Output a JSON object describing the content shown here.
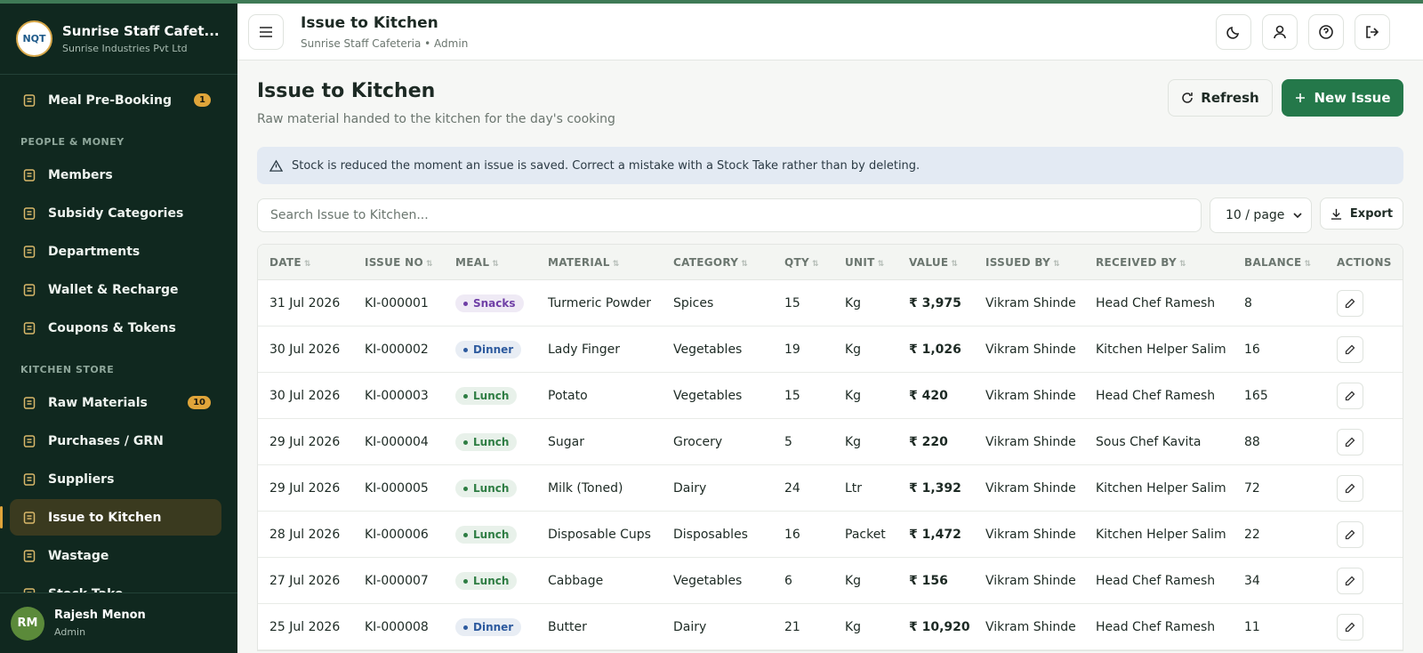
{
  "sidebar": {
    "brand": {
      "logo": "NQT",
      "name": "Sunrise Staff Cafet...",
      "org": "Sunrise Industries Pvt Ltd"
    },
    "groups": [
      {
        "section": null,
        "items": [
          {
            "label": "Meal Pre-Booking",
            "badge": "1"
          }
        ]
      },
      {
        "section": "PEOPLE & MONEY",
        "items": [
          {
            "label": "Members"
          },
          {
            "label": "Subsidy Categories"
          },
          {
            "label": "Departments"
          },
          {
            "label": "Wallet & Recharge"
          },
          {
            "label": "Coupons & Tokens"
          }
        ]
      },
      {
        "section": "KITCHEN STORE",
        "items": [
          {
            "label": "Raw Materials",
            "badge": "10"
          },
          {
            "label": "Purchases / GRN"
          },
          {
            "label": "Suppliers"
          },
          {
            "label": "Issue to Kitchen",
            "active": true
          },
          {
            "label": "Wastage"
          },
          {
            "label": "Stock Take"
          }
        ]
      }
    ],
    "user": {
      "initials": "RM",
      "name": "Rajesh Menon",
      "role": "Admin"
    }
  },
  "header": {
    "title": "Issue to Kitchen",
    "subtitle": "Sunrise Staff Cafeteria • Admin"
  },
  "page": {
    "title": "Issue to Kitchen",
    "description": "Raw material handed to the kitchen for the day's cooking",
    "refresh": "Refresh",
    "new_issue": "New Issue",
    "notice": "Stock is reduced the moment an issue is saved. Correct a mistake with a Stock Take rather than by deleting.",
    "search_placeholder": "Search Issue to Kitchen...",
    "page_size": "10 / page",
    "export": "Export"
  },
  "meal_colors": {
    "Snacks": "#6f3fa6",
    "Dinner": "#2d5a9e",
    "Lunch": "#2e7d43"
  },
  "table": {
    "columns": [
      "DATE",
      "ISSUE NO",
      "MEAL",
      "MATERIAL",
      "CATEGORY",
      "QTY",
      "UNIT",
      "VALUE",
      "ISSUED BY",
      "RECEIVED BY",
      "BALANCE",
      "ACTIONS"
    ],
    "rows": [
      [
        "31 Jul 2026",
        "KI-000001",
        "Snacks",
        "Turmeric Powder",
        "Spices",
        "15",
        "Kg",
        "₹ 3,975",
        "Vikram Shinde",
        "Head Chef Ramesh",
        "8"
      ],
      [
        "30 Jul 2026",
        "KI-000002",
        "Dinner",
        "Lady Finger",
        "Vegetables",
        "19",
        "Kg",
        "₹ 1,026",
        "Vikram Shinde",
        "Kitchen Helper Salim",
        "16"
      ],
      [
        "30 Jul 2026",
        "KI-000003",
        "Lunch",
        "Potato",
        "Vegetables",
        "15",
        "Kg",
        "₹ 420",
        "Vikram Shinde",
        "Head Chef Ramesh",
        "165"
      ],
      [
        "29 Jul 2026",
        "KI-000004",
        "Lunch",
        "Sugar",
        "Grocery",
        "5",
        "Kg",
        "₹ 220",
        "Vikram Shinde",
        "Sous Chef Kavita",
        "88"
      ],
      [
        "29 Jul 2026",
        "KI-000005",
        "Lunch",
        "Milk (Toned)",
        "Dairy",
        "24",
        "Ltr",
        "₹ 1,392",
        "Vikram Shinde",
        "Kitchen Helper Salim",
        "72"
      ],
      [
        "28 Jul 2026",
        "KI-000006",
        "Lunch",
        "Disposable Cups",
        "Disposables",
        "16",
        "Packet",
        "₹ 1,472",
        "Vikram Shinde",
        "Kitchen Helper Salim",
        "22"
      ],
      [
        "27 Jul 2026",
        "KI-000007",
        "Lunch",
        "Cabbage",
        "Vegetables",
        "6",
        "Kg",
        "₹ 156",
        "Vikram Shinde",
        "Head Chef Ramesh",
        "34"
      ],
      [
        "25 Jul 2026",
        "KI-000008",
        "Dinner",
        "Butter",
        "Dairy",
        "21",
        "Kg",
        "₹ 10,920",
        "Vikram Shinde",
        "Head Chef Ramesh",
        "11"
      ]
    ]
  }
}
